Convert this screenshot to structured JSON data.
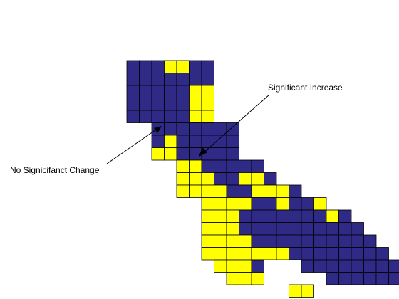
{
  "figure": {
    "annotations": [
      {
        "id": "increase",
        "text": "Significant Increase"
      },
      {
        "id": "nochange",
        "text": "No Signicifanct Change"
      }
    ]
  },
  "colors": {
    "no_change": "#2e2a85",
    "increase": "#ffff00",
    "grid_line": "#000000",
    "background": "#ffffff"
  },
  "chart_data": {
    "type": "heatmap",
    "legend": {
      "Y": "increase",
      "B": "no_change"
    },
    "rows": [
      "....BBBYYBB................",
      "....BBBBBBB................",
      "....BBBBBYY................",
      "....BBBBBYY................",
      "....BBBBBYY................",
      "......BBBBBBB..............",
      "......BYBBBBB..............",
      "......YYBBBBB..............",
      "........YYBBBBB............",
      "........YYYBBYYB...........",
      "........YYYYBBYYYB.........",
      "..........YYYYBBYBBY.......",
      "..........YYYBBBBBBBYB.....",
      "..........YYYBBBBBBBBBB....",
      "..........YYYYBBBBBBBBBB...",
      "..........YYYYYBBBBBBBBBB..",
      "...........YYYBBBBBBBBBBBBB",
      "....................BBBBBBB"
    ],
    "white_cells": [
      [
        16,
        15
      ],
      [
        16,
        16
      ],
      [
        16,
        17
      ]
    ],
    "extra_cells": [
      [
        15,
        15,
        "Y"
      ],
      [
        15,
        16,
        "Y"
      ],
      [
        16,
        16,
        "B"
      ],
      [
        16,
        17,
        "B"
      ],
      [
        17,
        14,
        "Y"
      ],
      [
        16,
        12,
        "Y"
      ],
      [
        17,
        12,
        "Y"
      ],
      [
        17,
        13,
        "Y"
      ],
      [
        18,
        17,
        "Y"
      ],
      [
        18,
        18,
        "Y"
      ]
    ]
  }
}
